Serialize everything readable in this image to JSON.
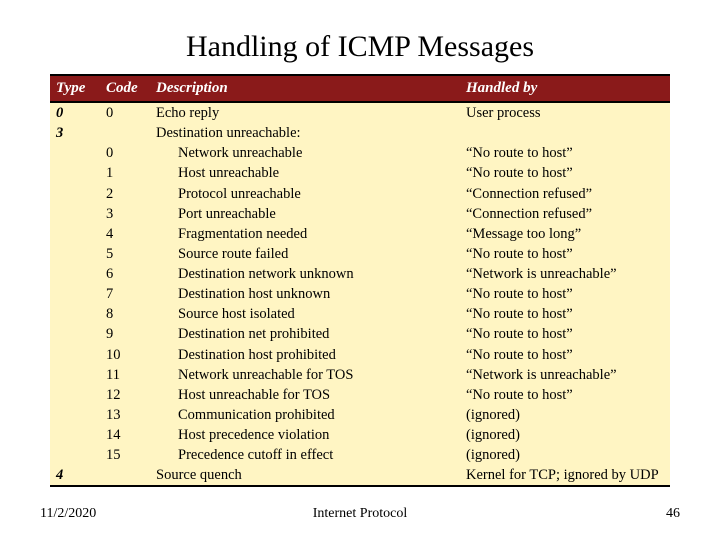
{
  "title": "Handling of ICMP Messages",
  "footer": {
    "date": "11/2/2020",
    "subject": "Internet Protocol",
    "page": "46"
  },
  "table": {
    "header_bg": "#8a1a1a",
    "body_bg": "#fff5c3",
    "columns": [
      "Type",
      "Code",
      "Description",
      "Handled by"
    ],
    "rows": [
      {
        "type": "0",
        "code": "0",
        "desc": "Echo reply",
        "handled": "User process",
        "indent": false
      },
      {
        "type": "3",
        "code": "",
        "desc": "Destination unreachable:",
        "handled": "",
        "indent": false
      },
      {
        "type": "",
        "code": "0",
        "desc": "Network unreachable",
        "handled": "“No route to host”",
        "indent": true
      },
      {
        "type": "",
        "code": "1",
        "desc": "Host unreachable",
        "handled": "“No route to host”",
        "indent": true
      },
      {
        "type": "",
        "code": "2",
        "desc": "Protocol unreachable",
        "handled": "“Connection refused”",
        "indent": true
      },
      {
        "type": "",
        "code": "3",
        "desc": "Port unreachable",
        "handled": "“Connection refused”",
        "indent": true
      },
      {
        "type": "",
        "code": "4",
        "desc": "Fragmentation needed",
        "handled": "“Message too long”",
        "indent": true
      },
      {
        "type": "",
        "code": "5",
        "desc": "Source route failed",
        "handled": "“No route to host”",
        "indent": true
      },
      {
        "type": "",
        "code": "6",
        "desc": "Destination network unknown",
        "handled": "“Network is unreachable”",
        "indent": true
      },
      {
        "type": "",
        "code": "7",
        "desc": "Destination host unknown",
        "handled": "“No route to host”",
        "indent": true
      },
      {
        "type": "",
        "code": "8",
        "desc": "Source host isolated",
        "handled": "“No route to host”",
        "indent": true
      },
      {
        "type": "",
        "code": "9",
        "desc": "Destination net prohibited",
        "handled": "“No route to host”",
        "indent": true
      },
      {
        "type": "",
        "code": "10",
        "desc": "Destination host prohibited",
        "handled": "“No route to host”",
        "indent": true
      },
      {
        "type": "",
        "code": "11",
        "desc": "Network unreachable for TOS",
        "handled": "“Network is unreachable”",
        "indent": true
      },
      {
        "type": "",
        "code": "12",
        "desc": "Host unreachable for TOS",
        "handled": "“No route to host”",
        "indent": true
      },
      {
        "type": "",
        "code": "13",
        "desc": "Communication prohibited",
        "handled": "(ignored)",
        "indent": true
      },
      {
        "type": "",
        "code": "14",
        "desc": "Host precedence violation",
        "handled": "(ignored)",
        "indent": true
      },
      {
        "type": "",
        "code": "15",
        "desc": "Precedence cutoff in effect",
        "handled": "(ignored)",
        "indent": true
      },
      {
        "type": "4",
        "code": "",
        "desc": "Source quench",
        "handled": "Kernel for TCP; ignored by UDP",
        "indent": false,
        "last": true
      }
    ]
  }
}
